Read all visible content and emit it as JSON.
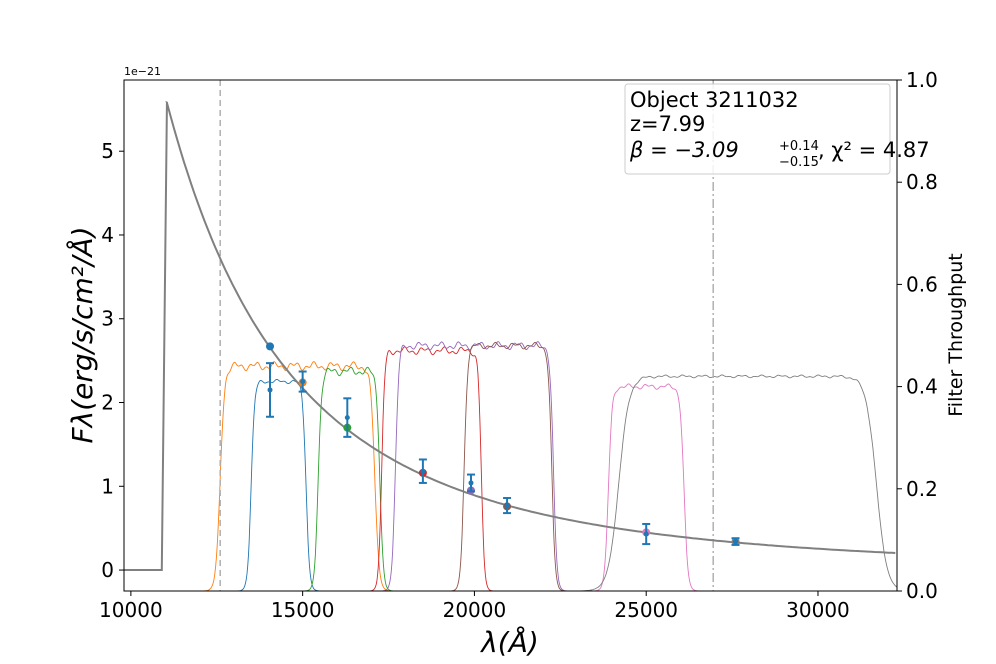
{
  "chart_data": {
    "type": "line",
    "xlabel": "λ(Å)",
    "ylabel_left": "Fλ(erg/s/cm²/Å)",
    "ylabel_right": "Filter Throughput",
    "y_offset_text": "1e−21",
    "xlim": [
      9800,
      32300
    ],
    "ylim_left": [
      -0.25,
      5.85
    ],
    "ylim_right": [
      0.0,
      1.0
    ],
    "x_ticks": [
      10000,
      15000,
      20000,
      25000,
      30000
    ],
    "y_ticks_left": [
      0,
      1,
      2,
      3,
      4,
      5
    ],
    "y_ticks_right": [
      "0.0",
      "0.2",
      "0.4",
      "0.6",
      "0.8",
      "1.0"
    ],
    "grid": false,
    "annotation": {
      "line1": "Object 3211032",
      "line2": "z=7.99",
      "line3_beta": "β = −3.09",
      "beta_plus": "+0.14",
      "beta_minus": "−0.15",
      "line3_chi": ", χ² = 4.87"
    },
    "vertical_lines": [
      {
        "x": 12600,
        "style": "dashed"
      },
      {
        "x": 26950,
        "style": "dashdot"
      }
    ],
    "model": {
      "break_x": 10900,
      "peak_x": 11050,
      "peak_y": 5.58,
      "start_x": 9800,
      "end_x": 32300,
      "beta": -3.09
    },
    "observed_points": [
      {
        "x": 14050,
        "y": 2.15,
        "err": 0.32,
        "color": "#1f77b4"
      },
      {
        "x": 15000,
        "y": 2.25,
        "err": 0.12,
        "color": "#1f77b4"
      },
      {
        "x": 16300,
        "y": 1.82,
        "err": 0.23,
        "color": "#1f77b4"
      },
      {
        "x": 18500,
        "y": 1.18,
        "err": 0.14,
        "color": "#1f77b4"
      },
      {
        "x": 19900,
        "y": 1.04,
        "err": 0.1,
        "color": "#1f77b4"
      },
      {
        "x": 20950,
        "y": 0.77,
        "err": 0.09,
        "color": "#1f77b4"
      },
      {
        "x": 25000,
        "y": 0.43,
        "err": 0.12,
        "color": "#1f77b4"
      },
      {
        "x": 27600,
        "y": 0.34,
        "err": 0.04,
        "color": "#1f77b4"
      }
    ],
    "model_points": [
      {
        "x": 14050,
        "y": 2.67,
        "color": "#1f77b4"
      },
      {
        "x": 15000,
        "y": 2.24,
        "color": "#ff7f0e"
      },
      {
        "x": 16300,
        "y": 1.7,
        "color": "#2ca02c"
      },
      {
        "x": 18500,
        "y": 1.16,
        "color": "#d62728"
      },
      {
        "x": 19900,
        "y": 0.95,
        "color": "#9467bd"
      },
      {
        "x": 20950,
        "y": 0.76,
        "color": "#8c564b"
      },
      {
        "x": 25000,
        "y": 0.45,
        "color": "#e377c2"
      },
      {
        "x": 27600,
        "y": 0.34,
        "color": "#7f7f7f"
      }
    ],
    "filters": [
      {
        "color": "#1f77b4",
        "x0": 13500,
        "x1": 15100,
        "edge": 200,
        "level": 0.41,
        "ripple": 0.006
      },
      {
        "color": "#ff7f0e",
        "x0": 12600,
        "x1": 17100,
        "edge": 250,
        "level": 0.44,
        "ripple": 0.012
      },
      {
        "color": "#2ca02c",
        "x0": 15450,
        "x1": 17250,
        "edge": 200,
        "level": 0.43,
        "ripple": 0.012
      },
      {
        "color": "#d62728",
        "x0": 17300,
        "x1": 20200,
        "edge": 180,
        "level": 0.47,
        "ripple": 0.01
      },
      {
        "color": "#9467bd",
        "x0": 17700,
        "x1": 22300,
        "edge": 200,
        "level": 0.48,
        "ripple": 0.01
      },
      {
        "color": "#8c564b",
        "x0": 19700,
        "x1": 22250,
        "edge": 200,
        "level": 0.48,
        "ripple": 0.008
      },
      {
        "color": "#e377c2",
        "x0": 23900,
        "x1": 26100,
        "edge": 220,
        "level": 0.4,
        "ripple": 0.008
      },
      {
        "color": "#7f7f7f",
        "x0": 24200,
        "x1": 31700,
        "edge": 600,
        "level": 0.42,
        "ripple": 0.004
      }
    ]
  }
}
